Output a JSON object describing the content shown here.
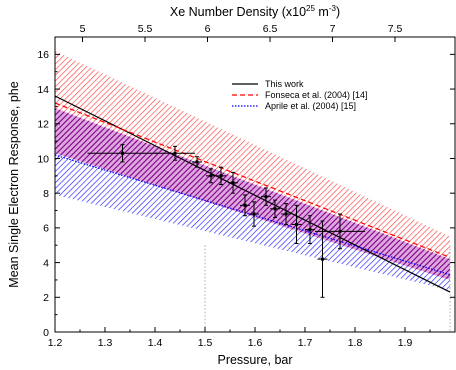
{
  "chart_data": {
    "type": "line",
    "xlabel": "Pressure, bar",
    "ylabel": "Mean Single Electron Response, phe",
    "top_axis_label": "Xe Number Density (x10",
    "top_axis_label_exp": "25",
    "top_axis_label_unit": " m",
    "top_axis_label_unit_exp": "-3",
    "top_axis_label_close": ")",
    "xlim": [
      1.2,
      2.0
    ],
    "ylim": [
      0,
      17
    ],
    "x_ticks": [
      1.2,
      1.3,
      1.4,
      1.5,
      1.6,
      1.7,
      1.8,
      1.9
    ],
    "x_tick_labels": [
      "1.2",
      "1.3",
      "1.4",
      "1.5",
      "1.6",
      "1.7",
      "1.8",
      "1.9"
    ],
    "y_ticks": [
      0,
      2,
      4,
      6,
      8,
      10,
      12,
      14,
      16
    ],
    "y_tick_labels": [
      "0",
      "2",
      "4",
      "6",
      "8",
      "10",
      "12",
      "14",
      "16"
    ],
    "top_ticks": [
      {
        "pressure": 1.255,
        "label": "5"
      },
      {
        "pressure": 1.38,
        "label": "5.5"
      },
      {
        "pressure": 1.505,
        "label": "6"
      },
      {
        "pressure": 1.63,
        "label": "6.5"
      },
      {
        "pressure": 1.755,
        "label": "7"
      },
      {
        "pressure": 1.88,
        "label": "7.5"
      }
    ],
    "reference_lines_x": [
      1.5,
      1.99
    ],
    "series": [
      {
        "name": "This work",
        "style": "solid",
        "color": "#000000",
        "x": [
          1.2,
          1.99
        ],
        "y": [
          13.6,
          2.3
        ]
      },
      {
        "name": "Fonseca et al. (2004) [14]",
        "style": "dashed",
        "color": "#ff0000",
        "x": [
          1.2,
          1.99
        ],
        "y": [
          13.2,
          4.3
        ],
        "band": {
          "upper": [
            16.2,
            5.5
          ],
          "lower": [
            10.3,
            3.0
          ]
        }
      },
      {
        "name": "Aprile et al. (2004) [15]",
        "style": "dotted",
        "color": "#0000ff",
        "x": [
          1.2,
          1.99
        ],
        "y": [
          10.2,
          3.3
        ],
        "band": {
          "upper": [
            12.9,
            4.2
          ],
          "lower": [
            7.9,
            2.4
          ]
        }
      }
    ],
    "data_points": {
      "x": [
        1.335,
        1.44,
        1.484,
        1.512,
        1.532,
        1.556,
        1.58,
        1.598,
        1.622,
        1.64,
        1.662,
        1.683,
        1.71,
        1.735,
        1.77
      ],
      "y": [
        10.3,
        10.3,
        9.8,
        9.0,
        9.0,
        8.6,
        7.3,
        6.8,
        7.8,
        7.1,
        6.8,
        6.2,
        5.9,
        4.2,
        5.8
      ],
      "yerr": [
        0.5,
        0.4,
        0.3,
        0.4,
        0.5,
        0.6,
        0.6,
        0.7,
        0.5,
        0.5,
        0.6,
        1.1,
        0.8,
        2.2,
        1.0
      ],
      "xerr": [
        0.07,
        0.04,
        0.01,
        0.01,
        0.01,
        0.01,
        0.01,
        0.01,
        0.01,
        0.01,
        0.01,
        0.01,
        0.01,
        0.01,
        0.05
      ]
    },
    "legend_position": "top-right",
    "grid": false
  },
  "colors": {
    "red_band": "#ff4040",
    "blue_band": "#2020ff",
    "purple_overlap": "#800080",
    "data": "#000000"
  }
}
